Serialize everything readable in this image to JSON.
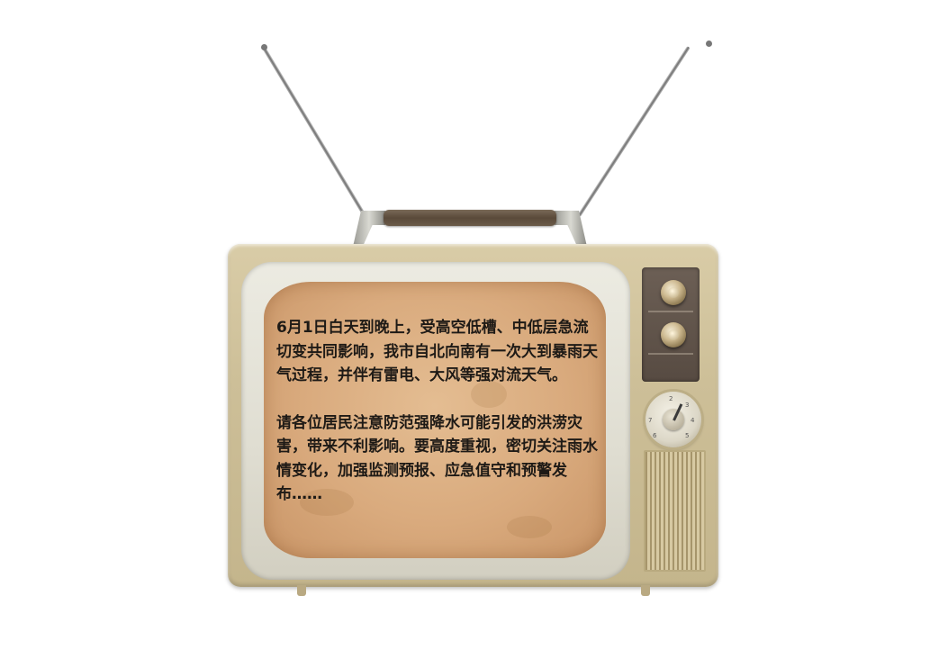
{
  "screen": {
    "paragraph_1": "6月1日白天到晚上，受高空低槽、中低层急流切变共同影响，我市自北向南有一次大到暴雨天气过程，并伴有雷电、大风等强对流天气。",
    "paragraph_2": "请各位居民注意防范强降水可能引发的洪涝灾害，带来不利影响。要高度重视，密切关注雨水情变化，加强监测预报、应急值守和预警发布……"
  },
  "dial": {
    "numbers": [
      "2",
      "3",
      "4",
      "5",
      "6",
      "7"
    ]
  },
  "colors": {
    "cabinet": "#cdbf98",
    "screen": "#d9aa7d",
    "text": "#1e1a16",
    "knob_panel": "#5f5249"
  }
}
